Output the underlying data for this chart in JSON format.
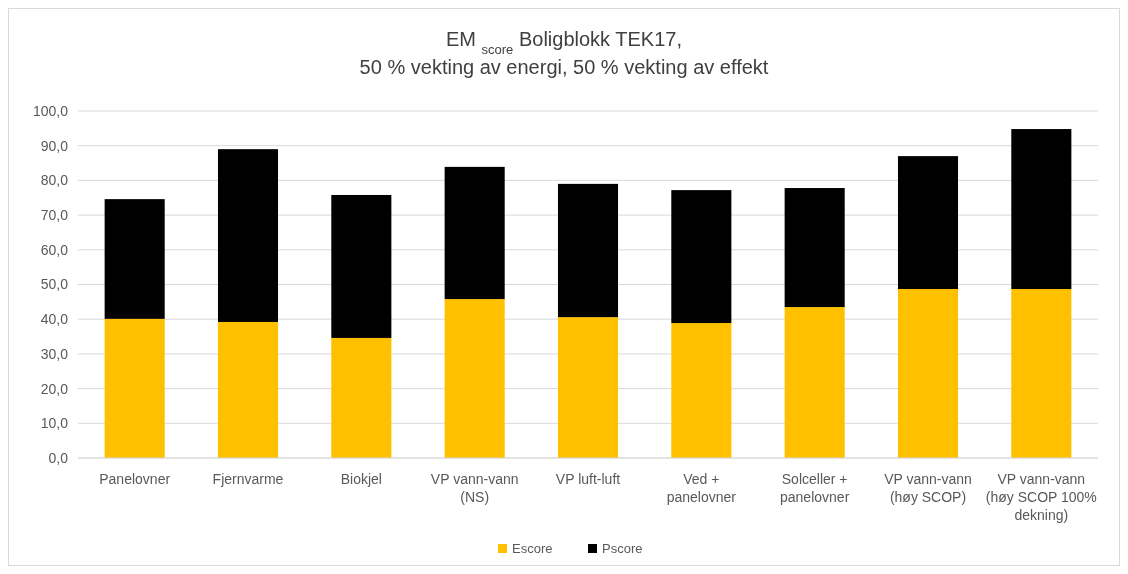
{
  "chart_data": {
    "type": "bar",
    "title": "EM $_{score}$ Boligblokk TEK17,\n50 % vekting av energi, 50 % vekting av effekt",
    "stacked": true,
    "categories": [
      "Panelovner",
      "Fjernvarme",
      "Biokjel",
      "VP vann-vann (NS)",
      "VP luft-luft",
      "Ved + panelovner",
      "Solceller + panelovner",
      "VP vann-vann (høy SCOP)",
      "VP vann-vann (høy SCOP 100% dekning)"
    ],
    "series": [
      {
        "name": "Escore",
        "color": "#ffc000",
        "values": [
          40.1,
          39.2,
          34.6,
          45.8,
          40.6,
          38.9,
          43.5,
          48.7,
          48.7
        ]
      },
      {
        "name": "Pscore",
        "color": "#000000",
        "values": [
          34.5,
          49.8,
          41.2,
          38.1,
          38.4,
          38.3,
          34.3,
          38.3,
          46.1
        ]
      }
    ],
    "ylim": [
      0,
      100
    ],
    "yticks": [
      {
        "value": 0,
        "label": "0,0"
      },
      {
        "value": 10,
        "label": "10,0"
      },
      {
        "value": 20,
        "label": "20,0"
      },
      {
        "value": 30,
        "label": "30,0"
      },
      {
        "value": 40,
        "label": "40,0"
      },
      {
        "value": 50,
        "label": "50,0"
      },
      {
        "value": 60,
        "label": "60,0"
      },
      {
        "value": 70,
        "label": "70,0"
      },
      {
        "value": 80,
        "label": "80,0"
      },
      {
        "value": 90,
        "label": "90,0"
      },
      {
        "value": 100,
        "label": "100,0"
      }
    ],
    "grid": "y",
    "legend": "bottom"
  }
}
